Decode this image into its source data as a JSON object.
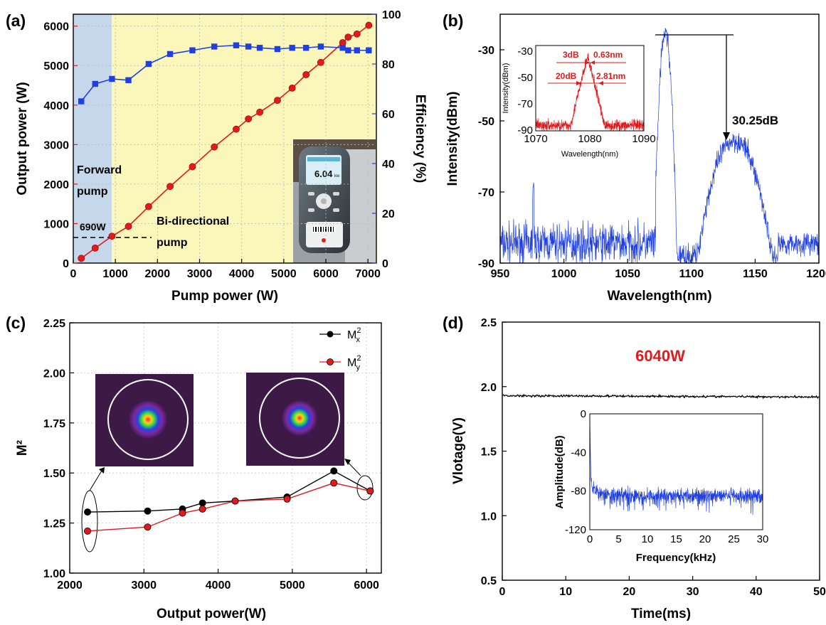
{
  "panel_labels": {
    "a": "(a)",
    "b": "(b)",
    "c": "(c)",
    "d": "(d)"
  },
  "annotations": {
    "forward_pump": [
      "Forward",
      "pump"
    ],
    "bidirectional_pump": [
      "Bi-directional",
      "pump"
    ],
    "threshold": "690W",
    "snr": "30.25dB",
    "inset_3db": "3dB",
    "inset_3db_value": "0.63nm",
    "inset_20db": "20dB",
    "inset_20db_value": "2.81nm",
    "power_label": "6040W",
    "meter_reading": "6.04",
    "meter_unit": "kw"
  },
  "colors": {
    "red": "#e31a1c",
    "blue": "#1f3fe0",
    "black": "#000000",
    "forward_band": "#c5d7ea",
    "bidirectional_band": "#fbf6b9"
  },
  "chart_data": [
    {
      "panel": "a",
      "type": "line",
      "xlabel": "Pump power (W)",
      "ylabel": "Output power (W)",
      "y2label": "Efficiency (%)",
      "xlim": [
        0,
        7200
      ],
      "ylim": [
        0,
        6300
      ],
      "y2lim": [
        0,
        100
      ],
      "xticks": [
        0,
        1000,
        2000,
        3000,
        4000,
        5000,
        6000,
        7000
      ],
      "yticks": [
        0,
        1000,
        2000,
        3000,
        4000,
        5000,
        6000
      ],
      "y2ticks": [
        0,
        20,
        40,
        60,
        80,
        100
      ],
      "regions": [
        {
          "label": "Forward pump",
          "x": [
            0,
            930
          ]
        },
        {
          "label": "Bi-directional pump",
          "x": [
            930,
            7200
          ]
        }
      ],
      "series": [
        {
          "axis": "left",
          "x": [
            190,
            520,
            920,
            1310,
            1790,
            2300,
            2830,
            3350,
            3870,
            4160,
            4430,
            4850,
            5200,
            5530,
            5880,
            6400,
            6530,
            6740,
            7020
          ],
          "values": [
            120,
            380,
            680,
            930,
            1430,
            1940,
            2440,
            2940,
            3390,
            3650,
            3820,
            4120,
            4430,
            4770,
            5080,
            5580,
            5720,
            5800,
            6020
          ]
        },
        {
          "axis": "right",
          "x": [
            190,
            520,
            920,
            1310,
            1790,
            2300,
            2830,
            3350,
            3870,
            4160,
            4430,
            4850,
            5200,
            5530,
            5880,
            6400,
            6530,
            6740,
            7020
          ],
          "values": [
            65,
            72,
            74,
            73.5,
            80,
            84,
            85.5,
            87,
            87.5,
            87,
            86.5,
            86,
            86.5,
            86.5,
            87,
            86.5,
            85.5,
            85.5,
            85.5
          ]
        }
      ]
    },
    {
      "panel": "b",
      "type": "line",
      "xlabel": "Wavelength(nm)",
      "ylabel": "Intensity(dBm)",
      "xlim": [
        950,
        1200
      ],
      "ylim": [
        -90,
        -20
      ],
      "xticks": [
        950,
        1000,
        1050,
        1100,
        1150,
        1200
      ],
      "yticks": [
        -90,
        -70,
        -50,
        -30
      ],
      "inset": {
        "xlabel": "Wavelength(nm)",
        "ylabel": "Intensity(dBm)",
        "xlim": [
          1070,
          1090
        ],
        "ylim": [
          -90,
          -25
        ],
        "xticks": [
          1070,
          1080,
          1090
        ],
        "yticks": [
          -90,
          -70,
          -50,
          -30
        ]
      }
    },
    {
      "panel": "c",
      "type": "line",
      "xlabel": "Output power(W)",
      "ylabel": "M²",
      "xlim": [
        2000,
        6200
      ],
      "ylim": [
        1.0,
        2.25
      ],
      "xticks": [
        2000,
        3000,
        4000,
        5000,
        6000
      ],
      "yticks": [
        1.0,
        1.25,
        1.5,
        1.75,
        2.0,
        2.25
      ],
      "series": [
        {
          "name": "Mx2",
          "x": [
            2240,
            3050,
            3520,
            3790,
            4230,
            4930,
            5560,
            6050
          ],
          "values": [
            1.305,
            1.31,
            1.32,
            1.35,
            1.36,
            1.38,
            1.51,
            1.41
          ]
        },
        {
          "name": "My2",
          "x": [
            2240,
            3050,
            3520,
            3790,
            4230,
            4930,
            5560,
            6050
          ],
          "values": [
            1.21,
            1.23,
            1.3,
            1.32,
            1.36,
            1.37,
            1.45,
            1.41
          ]
        }
      ]
    },
    {
      "panel": "d",
      "type": "line",
      "xlabel": "Time(ms)",
      "ylabel": "Vlotage(V)",
      "xlim": [
        0,
        50
      ],
      "ylim": [
        0.5,
        2.5
      ],
      "xticks": [
        0,
        10,
        20,
        30,
        40,
        50
      ],
      "yticks": [
        0.5,
        1.0,
        1.5,
        2.0,
        2.5
      ],
      "series": [
        {
          "x": [
            0,
            50
          ],
          "values": [
            1.93,
            1.92
          ]
        }
      ],
      "inset": {
        "xlabel": "Frequency(kHz)",
        "ylabel": "Amplitude(dB)",
        "xlim": [
          0,
          30
        ],
        "ylim": [
          -120,
          0
        ],
        "xticks": [
          0,
          5,
          10,
          15,
          20,
          25,
          30
        ],
        "yticks": [
          -120,
          -80,
          -40,
          0
        ]
      }
    }
  ]
}
